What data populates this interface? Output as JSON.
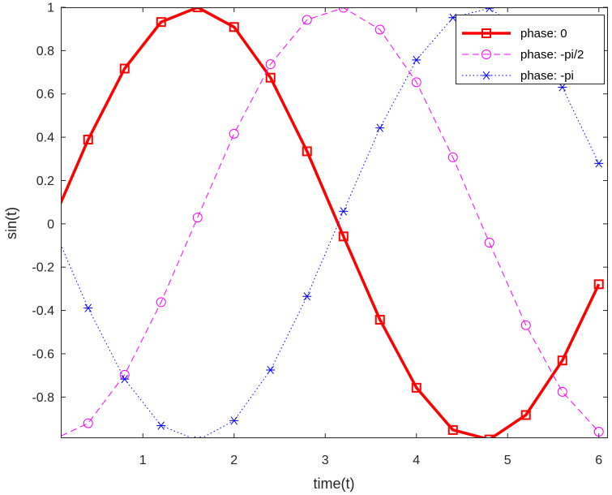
{
  "chart_data": {
    "type": "line",
    "xlabel": "time(t)",
    "ylabel": "sin(t)",
    "xlim": [
      0.1,
      6.1
    ],
    "ylim": [
      -0.99,
      1.0
    ],
    "xticks": [
      1,
      2,
      3,
      4,
      5,
      6
    ],
    "xtick_labels": [
      "1",
      "2",
      "3",
      "4",
      "5",
      "6"
    ],
    "yticks": [
      -0.8,
      -0.6,
      -0.4,
      -0.2,
      0,
      0.2,
      0.4,
      0.6,
      0.8,
      1
    ],
    "ytick_labels": [
      "-0.8",
      "-0.6",
      "-0.4",
      "-0.2",
      "0",
      "0.2",
      "0.4",
      "0.6",
      "0.8",
      "1"
    ],
    "grid": false,
    "legend_position": "top-right",
    "x": [
      0.0,
      0.4,
      0.8,
      1.2,
      1.6,
      2.0,
      2.4,
      2.8,
      3.2,
      3.6,
      4.0,
      4.4,
      4.8,
      5.2,
      5.6,
      6.0
    ],
    "series": [
      {
        "name": "phase: 0",
        "color": "#ff0000",
        "line_style": "solid",
        "line_width": "thick",
        "marker": "square",
        "values": [
          0.0,
          0.389,
          0.717,
          0.932,
          0.9996,
          0.909,
          0.675,
          0.335,
          -0.058,
          -0.443,
          -0.757,
          -0.952,
          -0.996,
          -0.883,
          -0.631,
          -0.279
        ]
      },
      {
        "name": "phase: -pi/2",
        "color": "#ff00ff",
        "line_style": "dashed",
        "line_width": "thin",
        "marker": "circle",
        "values": [
          -1.0,
          -0.921,
          -0.697,
          -0.362,
          0.029,
          0.416,
          0.737,
          0.942,
          0.998,
          0.897,
          0.654,
          0.307,
          -0.087,
          -0.468,
          -0.776,
          -0.96
        ]
      },
      {
        "name": "phase: -pi",
        "color": "#0000ff",
        "line_style": "dotted",
        "line_width": "thin",
        "marker": "asterisk",
        "values": [
          0.0,
          -0.389,
          -0.717,
          -0.932,
          -0.9996,
          -0.909,
          -0.675,
          -0.335,
          0.058,
          0.443,
          0.757,
          0.952,
          0.996,
          0.883,
          0.631,
          0.279
        ]
      }
    ]
  }
}
